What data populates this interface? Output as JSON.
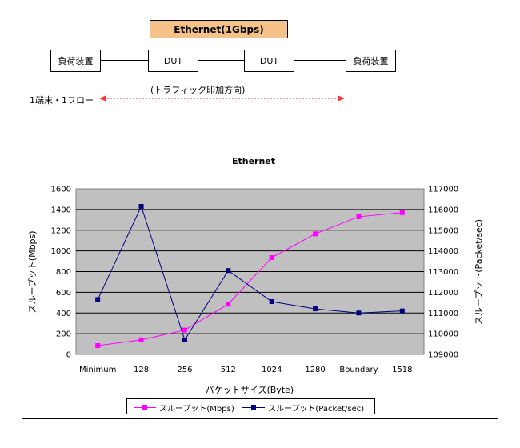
{
  "topology": {
    "header": "Ethernet(1Gbps)",
    "left_device": "負荷装置",
    "dut1": "DUT",
    "dut2": "DUT",
    "right_device": "負荷装置",
    "flow_note": "(トラフィック印加方向)",
    "terminal_note": "1端末・1フロー",
    "colors": {
      "header_fill": "#f5c28a",
      "arrow": "#ff3333"
    }
  },
  "chart_data": {
    "type": "line",
    "title": "Ethernet",
    "xlabel": "パケットサイズ(Byte)",
    "ylabel": "スループット(Mbps)",
    "y2label": "スループット(Packet/sec)",
    "categories": [
      "Minimum",
      "128",
      "256",
      "512",
      "1024",
      "1280",
      "Boundary",
      "1518"
    ],
    "ylim": [
      0,
      1600
    ],
    "yticks": [
      "0",
      "200",
      "400",
      "600",
      "800",
      "1000",
      "1200",
      "1400",
      "1600"
    ],
    "y2lim": [
      109000,
      117000
    ],
    "y2ticks": [
      "109000",
      "110000",
      "111000",
      "112000",
      "113000",
      "114000",
      "115000",
      "116000",
      "117000"
    ],
    "grid": true,
    "plot_background": "#c0c0c0",
    "legend_position": "bottom",
    "series": [
      {
        "name": "スループット(Mbps)",
        "axis": "left",
        "color": "#ff00ff",
        "values": [
          85,
          140,
          235,
          485,
          935,
          1165,
          1330,
          1370
        ]
      },
      {
        "name": "スループット(Packet/sec)",
        "axis": "right",
        "color": "#000080",
        "values": [
          111650,
          116150,
          109700,
          113050,
          111550,
          111200,
          111000,
          111100
        ]
      }
    ]
  }
}
